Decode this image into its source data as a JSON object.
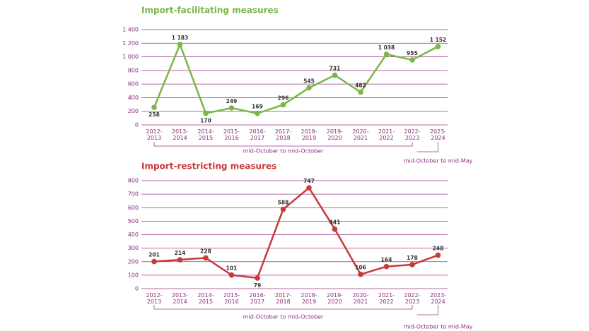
{
  "chart_data": [
    {
      "type": "line",
      "title": "Import-facilitating measures",
      "color": "#7ab648",
      "categories": [
        "2012-\n2013",
        "2013-\n2014",
        "2014-\n2015",
        "2015-\n2016",
        "2016-\n2017",
        "2017-\n2018",
        "2018-\n2019",
        "2019-\n2020",
        "2020-\n2021",
        "2021-\n2022",
        "2022-\n2023",
        "2023-\n2024"
      ],
      "values": [
        258,
        1183,
        170,
        249,
        169,
        296,
        545,
        731,
        482,
        1038,
        955,
        1152
      ],
      "value_labels": [
        "258",
        "1 183",
        "170",
        "249",
        "169",
        "296",
        "545",
        "731",
        "482",
        "1 038",
        "955",
        "1 152"
      ],
      "ylim": [
        0,
        1400
      ],
      "yticks": [
        0,
        200,
        400,
        600,
        800,
        {
          "value": 1000,
          "label": "1 000"
        },
        {
          "value": 1200,
          "label": "1 200"
        },
        {
          "value": 1400,
          "label": "1 400"
        }
      ],
      "grid": true,
      "annotations": [
        "mid-October to mid-October",
        "mid-October to mid-May"
      ]
    },
    {
      "type": "line",
      "title": "Import-restricting measures",
      "color": "#c8393b",
      "categories": [
        "2012-\n2013",
        "2013-\n2014",
        "2014-\n2015",
        "2015-\n2016",
        "2016-\n2017",
        "2017-\n2018",
        "2018-\n2019",
        "2019-\n2020",
        "2020-\n2021",
        "2021-\n2022",
        "2022-\n2023",
        "2023-\n2024"
      ],
      "values": [
        201,
        214,
        228,
        101,
        79,
        588,
        747,
        441,
        106,
        164,
        178,
        248
      ],
      "ylim": [
        0,
        800
      ],
      "yticks": [
        0,
        100,
        200,
        300,
        400,
        500,
        600,
        700,
        800
      ],
      "grid": true,
      "annotations": [
        "mid-October to mid-October",
        "mid-October to mid-May"
      ]
    }
  ]
}
